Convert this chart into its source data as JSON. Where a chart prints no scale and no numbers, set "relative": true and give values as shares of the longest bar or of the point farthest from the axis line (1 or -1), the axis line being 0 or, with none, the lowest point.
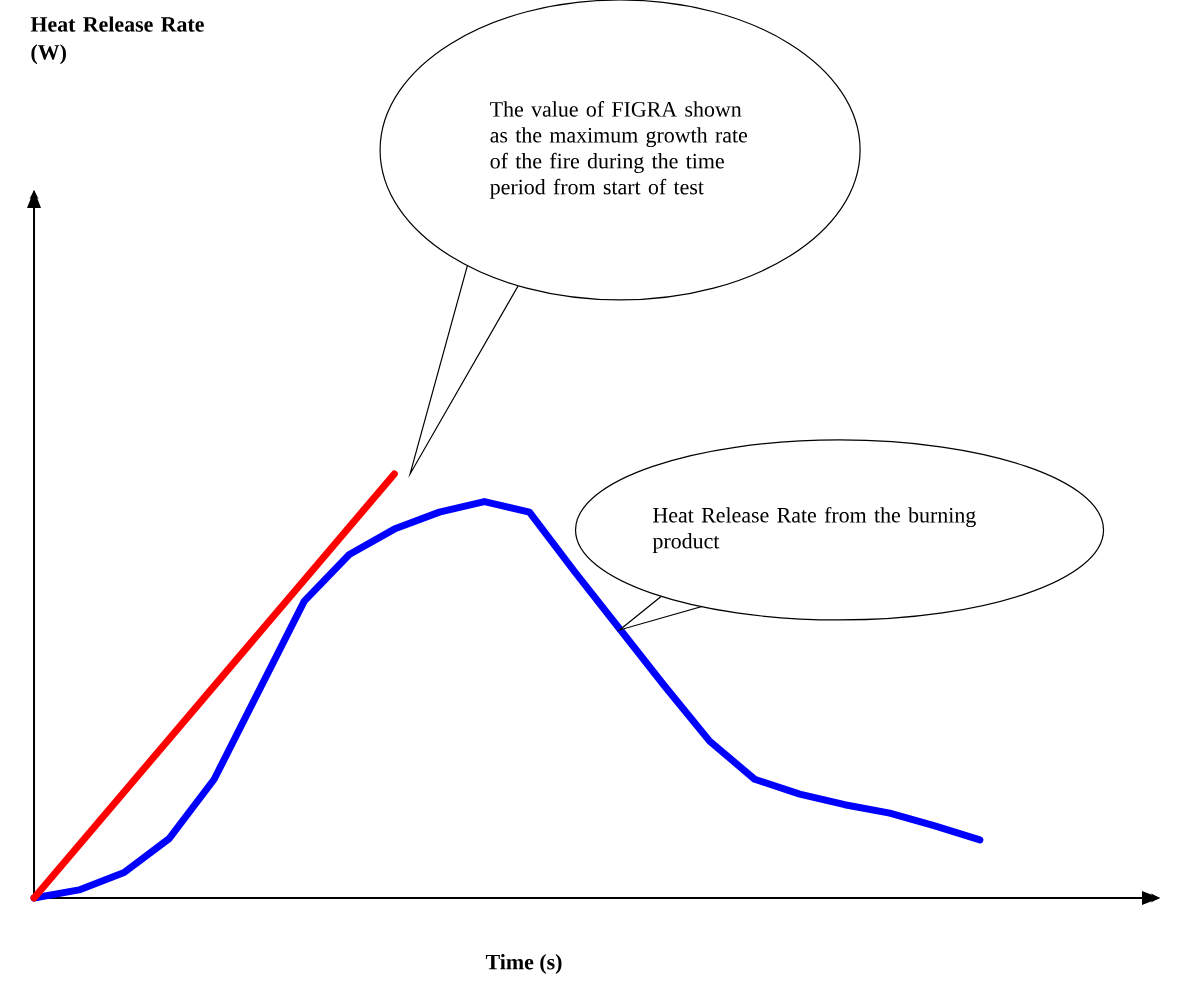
{
  "chart_data": {
    "type": "line",
    "relative": true,
    "xlabel": "Time (s)",
    "categories": [
      null,
      null,
      null,
      null,
      null,
      null,
      null,
      null,
      null,
      null,
      null,
      null,
      null,
      null,
      null,
      null,
      null,
      null,
      null,
      null,
      null,
      null
    ],
    "series": [
      {
        "color": "#0000ff",
        "values": [
          0,
          0.019,
          0.06,
          0.14,
          0.28,
          0.49,
          0.7,
          0.81,
          0.87,
          0.91,
          0.935,
          0.91,
          0.77,
          0.635,
          0.5,
          0.37,
          0.28,
          0.245,
          0.22,
          0.2,
          0.17,
          0.137
        ]
      },
      {
        "color": "#ff0000",
        "values": [
          0,
          0.125,
          0.25,
          0.375,
          0.5,
          0.625,
          0.75,
          0.875,
          1,
          null,
          null,
          null,
          null,
          null,
          null,
          null,
          null,
          null,
          null,
          null,
          null,
          null
        ]
      }
    ],
    "annotations": [
      "Heat Release Rate (W)",
      "The value of FIGRA shown as the maximum growth rate of the fire during the time period from start of test",
      "Heat Release Rate from the burning product"
    ]
  }
}
